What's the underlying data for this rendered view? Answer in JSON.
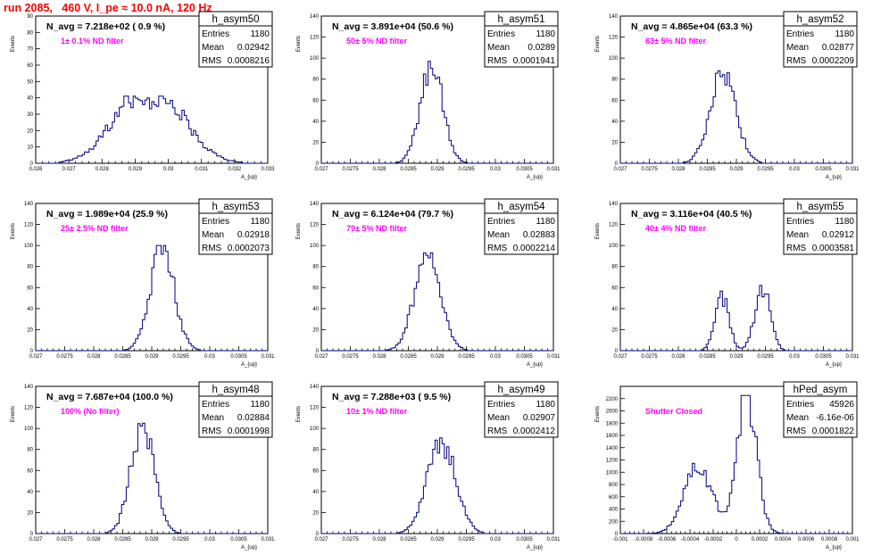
{
  "page": {
    "title": "run 2085,   460 V, I_pe ≈ 10.0 nA, 120 Hz"
  },
  "stat_labels": {
    "entries": "Entries",
    "mean": "Mean",
    "rms": "RMS"
  },
  "chart_data": [
    {
      "type": "histogram",
      "name": "h_asym50",
      "navg": "N_avg = 7.218e+02 ( 0.9 %)",
      "filter": "1± 0.1% ND filter",
      "xlabel": "A_{up}",
      "ylabel": "Events",
      "xlim": [
        0.026,
        0.033
      ],
      "ylim": [
        0,
        90
      ],
      "xticks": [
        "0.026",
        "0.027",
        "0.028",
        "0.029",
        "0.03",
        "0.031",
        "0.032",
        "0.033"
      ],
      "yticks": [
        "0",
        "10",
        "20",
        "30",
        "40",
        "50",
        "60",
        "70",
        "80",
        "90"
      ],
      "stats": {
        "entries": "1180",
        "mean": "0.02942",
        "rms": "0.0008216"
      },
      "mean": 0.02942,
      "rms": 0.0008216,
      "peak": 41,
      "shape": "broad"
    },
    {
      "type": "histogram",
      "name": "h_asym51",
      "navg": "N_avg = 3.891e+04 (50.6 %)",
      "filter": "50± 5% ND filter",
      "xlabel": "A_{up}",
      "ylabel": "Events",
      "xlim": [
        0.027,
        0.031
      ],
      "ylim": [
        0,
        140
      ],
      "xticks": [
        "0.027",
        "0.0275",
        "0.028",
        "0.0285",
        "0.029",
        "0.0295",
        "0.03",
        "0.0305",
        "0.031"
      ],
      "yticks": [
        "0",
        "20",
        "40",
        "60",
        "80",
        "100",
        "120",
        "140"
      ],
      "stats": {
        "entries": "1180",
        "mean": "0.0289",
        "rms": "0.0001941"
      },
      "mean": 0.0289,
      "rms": 0.0001941,
      "peak": 97,
      "shape": "normal"
    },
    {
      "type": "histogram",
      "name": "h_asym52",
      "navg": "N_avg = 4.865e+04 (63.3 %)",
      "filter": "63± 5% ND filter",
      "xlabel": "A_{up}",
      "ylabel": "Events",
      "xlim": [
        0.027,
        0.031
      ],
      "ylim": [
        0,
        140
      ],
      "xticks": [
        "0.027",
        "0.0275",
        "0.028",
        "0.0285",
        "0.029",
        "0.0295",
        "0.03",
        "0.0305",
        "0.031"
      ],
      "yticks": [
        "0",
        "20",
        "40",
        "60",
        "80",
        "100",
        "120",
        "140"
      ],
      "stats": {
        "entries": "1180",
        "mean": "0.02877",
        "rms": "0.0002209"
      },
      "mean": 0.02877,
      "rms": 0.0002209,
      "peak": 88,
      "shape": "normal"
    },
    {
      "type": "histogram",
      "name": "h_asym53",
      "navg": "N_avg = 1.989e+04 (25.9 %)",
      "filter": "25± 2.5% ND filter",
      "xlabel": "A_{up}",
      "ylabel": "Events",
      "xlim": [
        0.027,
        0.031
      ],
      "ylim": [
        0,
        140
      ],
      "xticks": [
        "0.027",
        "0.0275",
        "0.028",
        "0.0285",
        "0.029",
        "0.0295",
        "0.03",
        "0.0305",
        "0.031"
      ],
      "yticks": [
        "0",
        "20",
        "40",
        "60",
        "80",
        "100",
        "120",
        "140"
      ],
      "stats": {
        "entries": "1180",
        "mean": "0.02918",
        "rms": "0.0002073"
      },
      "mean": 0.02918,
      "rms": 0.0002073,
      "peak": 100,
      "shape": "normal"
    },
    {
      "type": "histogram",
      "name": "h_asym54",
      "navg": "N_avg = 6.124e+04 (79.7 %)",
      "filter": "79± 5% ND filter",
      "xlabel": "A_{up}",
      "ylabel": "Events",
      "xlim": [
        0.027,
        0.031
      ],
      "ylim": [
        0,
        140
      ],
      "xticks": [
        "0.027",
        "0.0275",
        "0.028",
        "0.0285",
        "0.029",
        "0.0295",
        "0.03",
        "0.0305",
        "0.031"
      ],
      "yticks": [
        "0",
        "20",
        "40",
        "60",
        "80",
        "100",
        "120",
        "140"
      ],
      "stats": {
        "entries": "1180",
        "mean": "0.02883",
        "rms": "0.0002214"
      },
      "mean": 0.02883,
      "rms": 0.0002214,
      "peak": 93,
      "shape": "normal"
    },
    {
      "type": "histogram",
      "name": "h_asym55",
      "navg": "N_avg = 3.116e+04 (40.5 %)",
      "filter": "40± 4% ND filter",
      "xlabel": "A_{up}",
      "ylabel": "Events",
      "xlim": [
        0.027,
        0.031
      ],
      "ylim": [
        0,
        140
      ],
      "xticks": [
        "0.027",
        "0.0275",
        "0.028",
        "0.0285",
        "0.029",
        "0.0295",
        "0.03",
        "0.0305",
        "0.031"
      ],
      "yticks": [
        "0",
        "20",
        "40",
        "60",
        "80",
        "100",
        "120",
        "140"
      ],
      "stats": {
        "entries": "1180",
        "mean": "0.02912",
        "rms": "0.0003581"
      },
      "mean": 0.02912,
      "rms": 0.0003581,
      "peak": 62,
      "shape": "bimodal"
    },
    {
      "type": "histogram",
      "name": "h_asym48",
      "navg": "N_avg = 7.687e+04 (100.0 %)",
      "filter": "100% (No filter)",
      "xlabel": "A_{up}",
      "ylabel": "Events",
      "xlim": [
        0.027,
        0.031
      ],
      "ylim": [
        0,
        140
      ],
      "xticks": [
        "0.027",
        "0.0275",
        "0.028",
        "0.0285",
        "0.029",
        "0.0295",
        "0.03",
        "0.0305",
        "0.031"
      ],
      "yticks": [
        "0",
        "20",
        "40",
        "60",
        "80",
        "100",
        "120",
        "140"
      ],
      "stats": {
        "entries": "1180",
        "mean": "0.02884",
        "rms": "0.0001998"
      },
      "mean": 0.02884,
      "rms": 0.0001998,
      "peak": 105,
      "shape": "normal"
    },
    {
      "type": "histogram",
      "name": "h_asym49",
      "navg": "N_avg = 7.288e+03 ( 9.5 %)",
      "filter": "10± 1% ND filter",
      "xlabel": "A_{up}",
      "ylabel": "Events",
      "xlim": [
        0.027,
        0.031
      ],
      "ylim": [
        0,
        140
      ],
      "xticks": [
        "0.027",
        "0.0275",
        "0.028",
        "0.0285",
        "0.029",
        "0.0295",
        "0.03",
        "0.0305",
        "0.031"
      ],
      "yticks": [
        "0",
        "20",
        "40",
        "60",
        "80",
        "100",
        "120",
        "140"
      ],
      "stats": {
        "entries": "1180",
        "mean": "0.02907",
        "rms": "0.0002412"
      },
      "mean": 0.02907,
      "rms": 0.0002412,
      "peak": 91,
      "shape": "normal"
    },
    {
      "type": "histogram",
      "name": "hPed_asym",
      "navg": "",
      "filter": "Shutter Closed",
      "xlabel": "A_{up}",
      "ylabel": "Events",
      "xlim": [
        -0.001,
        0.001
      ],
      "ylim": [
        0,
        2400
      ],
      "xticks": [
        "-0.001",
        "-0.0008",
        "-0.0006",
        "-0.0004",
        "-0.0002",
        "0",
        "0.0002",
        "0.0004",
        "0.0006",
        "0.0008",
        "0.001"
      ],
      "yticks": [
        "0",
        "200",
        "400",
        "600",
        "800",
        "1000",
        "1200",
        "1400",
        "1600",
        "1800",
        "2000",
        "2200"
      ],
      "stats": {
        "entries": "45926",
        "mean": "-6.16e-06",
        "rms": "0.0001822"
      },
      "mean": -6.16e-06,
      "rms": 0.0001822,
      "peak": 2250,
      "shape": "pedestal"
    }
  ]
}
